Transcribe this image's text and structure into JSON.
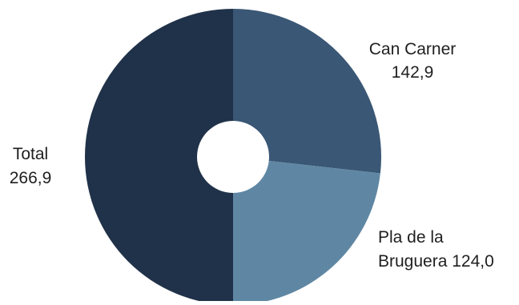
{
  "chart_data": {
    "type": "pie",
    "title": "",
    "donut": true,
    "slices": [
      {
        "label": "Can Carner",
        "value": 142.9,
        "value_label": "142,9",
        "color": "#3a5775"
      },
      {
        "label": "Pla de la Bruguera",
        "value": 124.0,
        "value_label": "124,0",
        "color": "#5f87a4"
      },
      {
        "label": "Total",
        "value": 266.9,
        "value_label": "266,9",
        "color": "#203249"
      }
    ],
    "data_labels": {
      "can_carner": {
        "line1": "Can Carner",
        "line2": "142,9"
      },
      "pla_de_la_bruguera": {
        "line1": "Pla de la",
        "line2": "Bruguera 124,0"
      },
      "total": {
        "line1": "Total",
        "line2": "266,9"
      }
    }
  }
}
